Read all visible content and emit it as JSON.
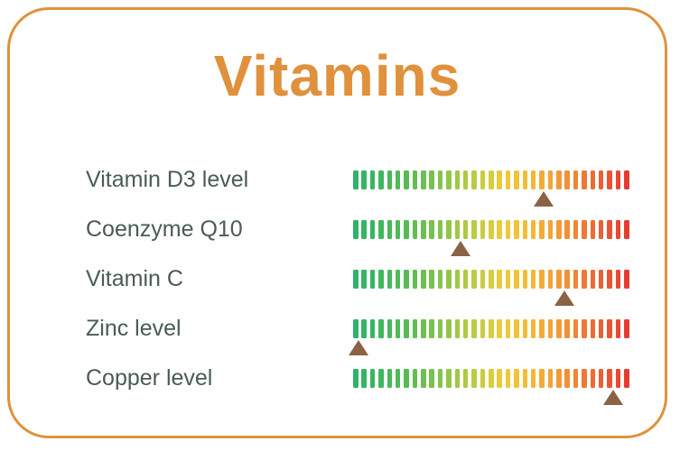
{
  "theme": {
    "accent": "#E0913C",
    "label_color": "#4A5C52",
    "marker_color": "#8A6345"
  },
  "card": {
    "title": "Vitamins"
  },
  "chart_data": {
    "type": "bar",
    "variant": "gradient-scale-with-position-markers",
    "title": "Vitamins",
    "categories": [
      "Vitamin D3 level",
      "Coenzyme Q10",
      "Vitamin C",
      "Zinc level",
      "Copper level"
    ],
    "values": [
      69,
      39,
      76.5,
      2,
      94
    ],
    "values_unit": "percent position along green-to-red scale",
    "xlim": [
      0,
      100
    ],
    "tick_count": 33,
    "gradient_stops": [
      "#2FB26B",
      "#3FB75D",
      "#55BB54",
      "#74C04E",
      "#9AC847",
      "#C4CC3F",
      "#EECB3A",
      "#F5BB39",
      "#F3A136",
      "#F08434",
      "#EA5E36",
      "#E63B31"
    ],
    "marker_color": "#8A6345",
    "legend": "none",
    "grid": false
  }
}
